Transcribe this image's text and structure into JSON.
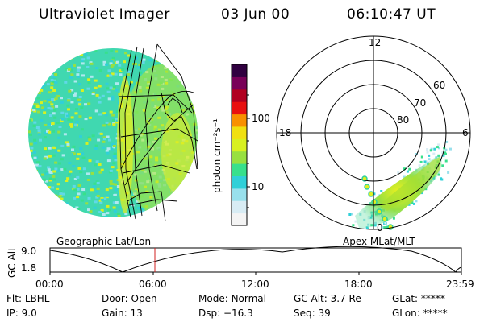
{
  "header": {
    "title": "Ultraviolet Imager",
    "date": "03 Jun 00",
    "time": "06:10:47 UT"
  },
  "colorbar": {
    "label": "photon cm⁻²s⁻¹",
    "ticks": [
      {
        "label": "100",
        "value": 100
      },
      {
        "label": "10",
        "value": 10
      }
    ],
    "colors": [
      "#f4f4f4",
      "#d8ecf4",
      "#98e0ec",
      "#30d0d8",
      "#38e08c",
      "#98e040",
      "#d8f020",
      "#f0e010",
      "#f89000",
      "#e81010",
      "#b00020",
      "#780058",
      "#300040"
    ]
  },
  "left_panel": {
    "caption": "Geographic Lat/Lon"
  },
  "right_panel": {
    "caption": "Apex MLat/MLT",
    "mlt_labels": {
      "top": "12",
      "left": "18",
      "right": "6",
      "bottom": "0"
    },
    "lat_labels": [
      "60",
      "70",
      "80"
    ]
  },
  "altitude_plot": {
    "ylabel": "GC Alt",
    "yticks": [
      "9.0",
      "1.8"
    ],
    "xticks": [
      "00:00",
      "06:00",
      "12:00",
      "18:00",
      "23:59"
    ],
    "marker_color": "#d02020"
  },
  "status": {
    "row1": [
      {
        "key": "Flt:",
        "value": "LBHL"
      },
      {
        "key": "Door:",
        "value": "Open"
      },
      {
        "key": "Mode:",
        "value": "Normal"
      },
      {
        "key": "GC Alt:",
        "value": "3.7 Re"
      },
      {
        "key": "GLat:",
        "value": "*****"
      }
    ],
    "row2": [
      {
        "key": "IP:",
        "value": "9.0"
      },
      {
        "key": "Gain:",
        "value": "13"
      },
      {
        "key": "Dsp:",
        "value": "−16.3"
      },
      {
        "key": "Seq:",
        "value": "39"
      },
      {
        "key": "GLon:",
        "value": "*****"
      }
    ]
  }
}
